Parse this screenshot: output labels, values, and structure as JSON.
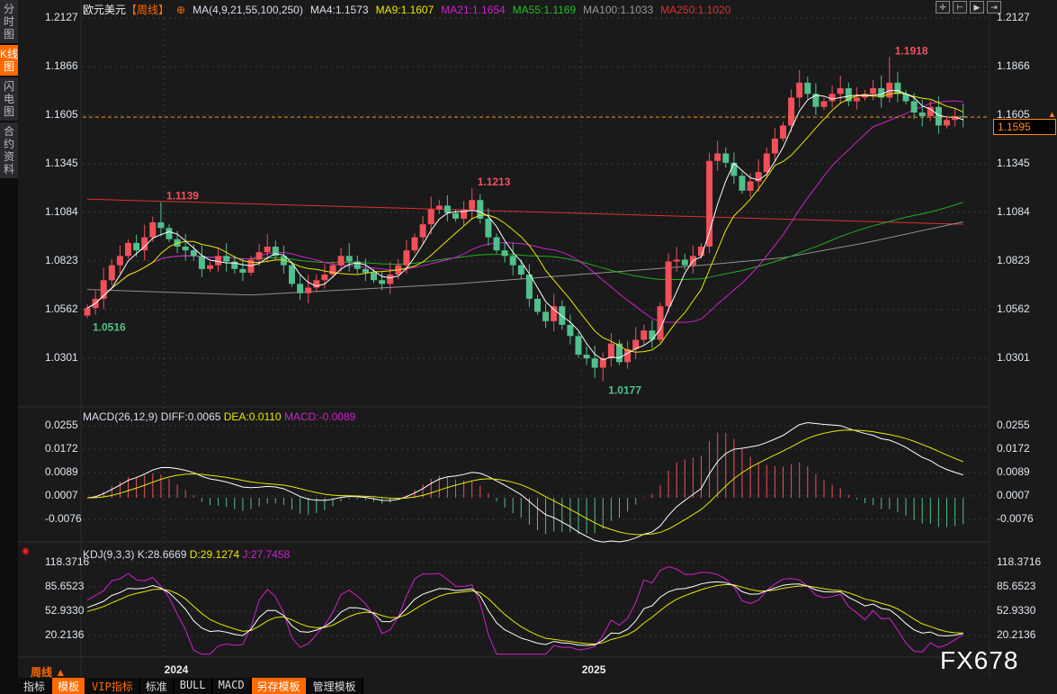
{
  "sidebar": {
    "tabs": [
      {
        "label": "分时图"
      },
      {
        "label": "K线图",
        "active": true
      },
      {
        "label": "闪电图"
      },
      {
        "label": "合约资料"
      }
    ]
  },
  "header": {
    "symbol": "欧元美元",
    "period": "【周线】",
    "ma_label": "MA(4,9,21,55,100,250)",
    "ma4": "MA4:1.1573",
    "ma9": "MA9:1.1607",
    "ma21": "MA21:1.1654",
    "ma55": "MA55:1.1169",
    "ma100": "MA100:1.1033",
    "ma250": "MA250:1.1020"
  },
  "toolbar_icons": [
    "crosshair-icon",
    "zoom-range-icon",
    "play-icon",
    "move-right-icon"
  ],
  "colors": {
    "up": "#f0505a",
    "down": "#50c08c",
    "ma4": "#ffffff",
    "ma9": "#e8e800",
    "ma21": "#d020d0",
    "ma55": "#20b020",
    "ma100": "#909090",
    "ma250": "#e03030",
    "current": "#ff8c1a"
  },
  "price_axis": [
    "1.2127",
    "1.1866",
    "1.1605",
    "1.1345",
    "1.1084",
    "1.0823",
    "1.0562",
    "1.0301"
  ],
  "current_price": "1.1595",
  "annotations": [
    {
      "text": "1.1918",
      "idx": 98,
      "at": "high"
    },
    {
      "text": "1.1213",
      "idx": 47,
      "at": "high"
    },
    {
      "text": "1.1139",
      "idx": 9,
      "at": "high"
    },
    {
      "text": "1.0516",
      "idx": 0,
      "at": "low"
    },
    {
      "text": "1.0177",
      "idx": 63,
      "at": "low"
    }
  ],
  "macd": {
    "label": "MACD(26,12,9)",
    "diff": "DIFF:0.0065",
    "dea": "DEA:0.0110",
    "macd": "MACD:-0.0089",
    "axis": [
      "0.0255",
      "0.0172",
      "0.0089",
      "0.0007",
      "-0.0076"
    ]
  },
  "kdj": {
    "label": "KDJ(9,3,3)",
    "k": "K:28.6669",
    "d": "D:29.1274",
    "j": "J:27.7458",
    "axis": [
      "118.3716",
      "85.6523",
      "52.9330",
      "20.2136"
    ]
  },
  "x_axis": {
    "period_label": "周线 ▲",
    "years": [
      "2024",
      "2025"
    ]
  },
  "bottom_tabs": [
    {
      "label": "指标"
    },
    {
      "label": "模板",
      "active": true
    },
    {
      "label": "VIP指标",
      "vip": true
    },
    {
      "label": "标准"
    },
    {
      "label": "BULL"
    },
    {
      "label": "MACD"
    },
    {
      "label": "另存模板",
      "active": true
    },
    {
      "label": "管理模板"
    }
  ],
  "watermark": "FX678",
  "chart_data": {
    "type": "candlestick",
    "closes": [
      1.057,
      1.062,
      1.072,
      1.08,
      1.085,
      1.092,
      1.088,
      1.095,
      1.103,
      1.1,
      1.094,
      1.09,
      1.088,
      1.085,
      1.078,
      1.08,
      1.085,
      1.082,
      1.078,
      1.076,
      1.083,
      1.087,
      1.09,
      1.085,
      1.08,
      1.07,
      1.065,
      1.068,
      1.072,
      1.075,
      1.08,
      1.085,
      1.082,
      1.078,
      1.076,
      1.072,
      1.07,
      1.075,
      1.08,
      1.088,
      1.095,
      1.102,
      1.11,
      1.112,
      1.108,
      1.105,
      1.11,
      1.115,
      1.105,
      1.095,
      1.088,
      1.085,
      1.08,
      1.075,
      1.062,
      1.055,
      1.05,
      1.058,
      1.048,
      1.042,
      1.032,
      1.03,
      1.025,
      1.03,
      1.038,
      1.028,
      1.035,
      1.04,
      1.045,
      1.04,
      1.058,
      1.082,
      1.083,
      1.08,
      1.085,
      1.09,
      1.136,
      1.14,
      1.135,
      1.128,
      1.12,
      1.125,
      1.13,
      1.14,
      1.148,
      1.155,
      1.17,
      1.178,
      1.172,
      1.165,
      1.168,
      1.172,
      1.175,
      1.168,
      1.17,
      1.172,
      1.175,
      1.17,
      1.178,
      1.172,
      1.168,
      1.162,
      1.16,
      1.165,
      1.155,
      1.158,
      1.16,
      1.1595
    ],
    "first_open": 1.053,
    "extremes": {
      "0": {
        "low": 1.0516
      },
      "9": {
        "high": 1.1139
      },
      "47": {
        "high": 1.1213
      },
      "63": {
        "low": 1.0177
      },
      "98": {
        "high": 1.1918
      }
    },
    "ma100": [
      [
        0,
        1.067
      ],
      [
        20,
        1.064
      ],
      [
        45,
        1.07
      ],
      [
        60,
        1.075
      ],
      [
        75,
        1.08
      ],
      [
        85,
        1.084
      ],
      [
        95,
        1.092
      ],
      [
        107,
        1.1033
      ]
    ],
    "ma250": [
      [
        0,
        1.1155
      ],
      [
        107,
        1.102
      ]
    ],
    "ylim": [
      1.0301,
      1.2127
    ],
    "year_start_idx": {
      "2024": 10,
      "2025": 61
    }
  }
}
